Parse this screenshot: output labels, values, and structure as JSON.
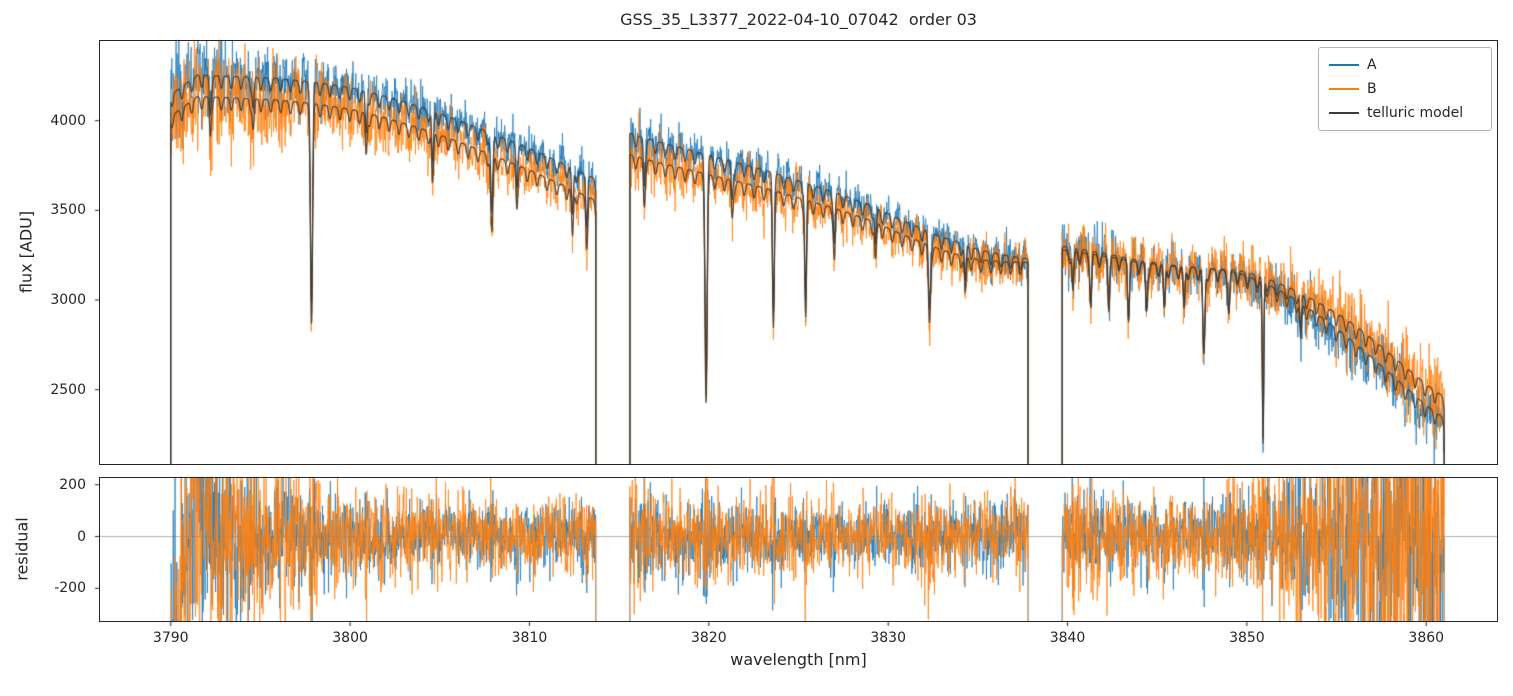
{
  "chart_data": {
    "type": "line",
    "title": "GSS_35_L3377_2022-04-10_07042  order 03",
    "xlabel": "wavelength [nm]",
    "xlim": [
      3786,
      3864
    ],
    "xticks": [
      3790,
      3800,
      3810,
      3820,
      3830,
      3840,
      3850,
      3860
    ],
    "panels": {
      "flux": {
        "ylabel": "flux [ADU]",
        "ylim": [
          2080,
          4450
        ],
        "yticks": [
          2500,
          3000,
          3500,
          4000
        ]
      },
      "residual": {
        "ylabel": "residual",
        "ylim": [
          -330,
          230
        ],
        "yticks": [
          -200,
          0,
          200
        ],
        "zero_line": true
      }
    },
    "legend": {
      "position": "upper right",
      "entries": [
        {
          "label": "A",
          "color": "#1f77b4"
        },
        {
          "label": "B",
          "color": "#ff7f0e"
        },
        {
          "label": "telluric model",
          "color": "#3f3a33"
        }
      ]
    },
    "colors": {
      "frame": "#262626",
      "text": "#262626",
      "zero_line": "#9a9a9a",
      "background": "#ffffff"
    },
    "model_color": "#3f3a33",
    "ripple": {
      "period_nm": 0.55,
      "depth_adu": 70,
      "phase": 1.3
    },
    "series": [
      {
        "name": "A",
        "color": "#1f77b4",
        "noise_scale": 0.9,
        "offsets": [
          [
            [
              3790,
              55
            ],
            [
              3813.7,
              55
            ]
          ],
          [
            [
              3815.6,
              70
            ],
            [
              3834,
              40
            ],
            [
              3837.8,
              10
            ]
          ],
          [
            [
              3839.7,
              10
            ],
            [
              3848,
              0
            ],
            [
              3852,
              -20
            ],
            [
              3856,
              -50
            ],
            [
              3861,
              -60
            ]
          ]
        ]
      },
      {
        "name": "B",
        "color": "#ff7f0e",
        "noise_scale": 1.1,
        "offsets": [
          [
            [
              3790,
              -65
            ],
            [
              3813.7,
              -65
            ]
          ],
          [
            [
              3815.6,
              -50
            ],
            [
              3834,
              -30
            ],
            [
              3837.8,
              -10
            ]
          ],
          [
            [
              3839.7,
              -10
            ],
            [
              3848,
              0
            ],
            [
              3852,
              20
            ],
            [
              3856,
              50
            ],
            [
              3861,
              60
            ]
          ]
        ]
      }
    ],
    "segments": [
      {
        "x0": 3790.0,
        "x1": 3813.7,
        "model": [
          [
            3790,
            4090
          ],
          [
            3791.5,
            4200
          ],
          [
            3794,
            4190
          ],
          [
            3796,
            4180
          ],
          [
            3798,
            4160
          ],
          [
            3800,
            4130
          ],
          [
            3802,
            4080
          ],
          [
            3804,
            4020
          ],
          [
            3806,
            3950
          ],
          [
            3808,
            3870
          ],
          [
            3810,
            3790
          ],
          [
            3812,
            3700
          ],
          [
            3813.7,
            3620
          ]
        ],
        "noise": [
          [
            3790,
            140
          ],
          [
            3792,
            140
          ],
          [
            3795,
            110
          ],
          [
            3798,
            90
          ],
          [
            3802,
            70
          ],
          [
            3808,
            60
          ],
          [
            3813.7,
            60
          ]
        ],
        "res_noise": [
          [
            3790,
            300
          ],
          [
            3791.5,
            260
          ],
          [
            3793,
            200
          ],
          [
            3795,
            140
          ],
          [
            3798,
            100
          ],
          [
            3802,
            80
          ],
          [
            3808,
            70
          ],
          [
            3813.7,
            75
          ]
        ],
        "res_mean": [
          [
            3789.9,
            -520
          ],
          [
            3790.6,
            -180
          ],
          [
            3791.3,
            140
          ],
          [
            3792.2,
            60
          ],
          [
            3794,
            0
          ],
          [
            3813.7,
            0
          ]
        ]
      },
      {
        "x0": 3815.6,
        "x1": 3837.8,
        "model": [
          [
            3815.6,
            3860
          ],
          [
            3817,
            3820
          ],
          [
            3819,
            3770
          ],
          [
            3821,
            3720
          ],
          [
            3823,
            3670
          ],
          [
            3825,
            3610
          ],
          [
            3827,
            3550
          ],
          [
            3829,
            3480
          ],
          [
            3831,
            3390
          ],
          [
            3833,
            3310
          ],
          [
            3835,
            3250
          ],
          [
            3836.5,
            3230
          ],
          [
            3837.8,
            3220
          ]
        ],
        "noise": [
          [
            3815.6,
            80
          ],
          [
            3818,
            70
          ],
          [
            3825,
            60
          ],
          [
            3833,
            55
          ],
          [
            3837.8,
            60
          ]
        ],
        "res_noise": [
          [
            3815.6,
            95
          ],
          [
            3818,
            80
          ],
          [
            3824,
            70
          ],
          [
            3830,
            70
          ],
          [
            3835,
            70
          ],
          [
            3837.8,
            80
          ]
        ]
      },
      {
        "x0": 3839.7,
        "x1": 3861.0,
        "model": [
          [
            3839.7,
            3290
          ],
          [
            3841,
            3270
          ],
          [
            3842.5,
            3245
          ],
          [
            3844,
            3215
          ],
          [
            3846,
            3190
          ],
          [
            3848,
            3175
          ],
          [
            3849.5,
            3160
          ],
          [
            3851,
            3110
          ],
          [
            3852.5,
            3040
          ],
          [
            3854,
            2950
          ],
          [
            3855.5,
            2850
          ],
          [
            3857,
            2730
          ],
          [
            3858.5,
            2600
          ],
          [
            3860,
            2470
          ],
          [
            3861,
            2400
          ]
        ],
        "noise": [
          [
            3839.7,
            90
          ],
          [
            3842,
            70
          ],
          [
            3848,
            65
          ],
          [
            3852,
            75
          ],
          [
            3856,
            90
          ],
          [
            3861,
            110
          ]
        ],
        "res_noise": [
          [
            3839.7,
            100
          ],
          [
            3842,
            80
          ],
          [
            3845,
            70
          ],
          [
            3848,
            80
          ],
          [
            3851,
            110
          ],
          [
            3853,
            160
          ],
          [
            3855,
            230
          ],
          [
            3857,
            280
          ],
          [
            3859,
            300
          ],
          [
            3861,
            310
          ]
        ]
      }
    ],
    "absorption_lines": [
      {
        "c": 3792.2,
        "d": 180,
        "w": 0.05
      },
      {
        "c": 3794.6,
        "d": 160,
        "w": 0.05
      },
      {
        "c": 3797.85,
        "d": 1200,
        "w": 0.06
      },
      {
        "c": 3800.9,
        "d": 230,
        "w": 0.05
      },
      {
        "c": 3804.6,
        "d": 280,
        "w": 0.05
      },
      {
        "c": 3807.9,
        "d": 430,
        "w": 0.06
      },
      {
        "c": 3809.3,
        "d": 180,
        "w": 0.05
      },
      {
        "c": 3812.4,
        "d": 260,
        "w": 0.05
      },
      {
        "c": 3813.2,
        "d": 230,
        "w": 0.05
      },
      {
        "c": 3816.4,
        "d": 230,
        "w": 0.05
      },
      {
        "c": 3819.85,
        "d": 1250,
        "w": 0.06
      },
      {
        "c": 3821.3,
        "d": 200,
        "w": 0.05
      },
      {
        "c": 3823.6,
        "d": 700,
        "w": 0.05
      },
      {
        "c": 3825.4,
        "d": 640,
        "w": 0.05
      },
      {
        "c": 3827.0,
        "d": 250,
        "w": 0.05
      },
      {
        "c": 3829.3,
        "d": 200,
        "w": 0.05
      },
      {
        "c": 3832.3,
        "d": 420,
        "w": 0.06
      },
      {
        "c": 3834.3,
        "d": 200,
        "w": 0.05
      },
      {
        "c": 3840.3,
        "d": 220,
        "w": 0.05
      },
      {
        "c": 3841.3,
        "d": 260,
        "w": 0.05
      },
      {
        "c": 3842.3,
        "d": 240,
        "w": 0.05
      },
      {
        "c": 3843.4,
        "d": 280,
        "w": 0.05
      },
      {
        "c": 3844.4,
        "d": 260,
        "w": 0.05
      },
      {
        "c": 3845.4,
        "d": 240,
        "w": 0.05
      },
      {
        "c": 3846.5,
        "d": 230,
        "w": 0.05
      },
      {
        "c": 3847.6,
        "d": 480,
        "w": 0.06
      },
      {
        "c": 3849.0,
        "d": 200,
        "w": 0.05
      },
      {
        "c": 3850.9,
        "d": 900,
        "w": 0.04
      },
      {
        "c": 3853.0,
        "d": 200,
        "w": 0.05
      }
    ]
  }
}
